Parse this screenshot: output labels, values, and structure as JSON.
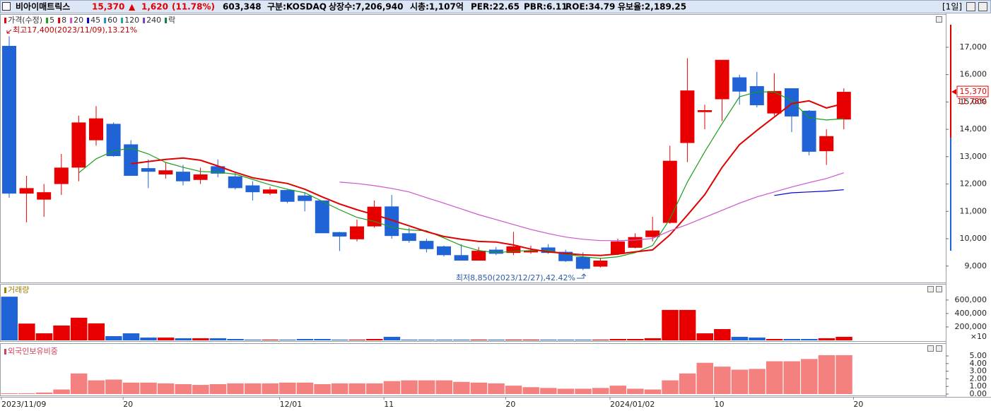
{
  "header": {
    "name": "비아이매트릭스",
    "price": "15,370",
    "arrow": "▲",
    "change": "1,620",
    "change_pct": "(11.78%)",
    "volume": "603,348",
    "market": "구분:KOSDAQ",
    "shares": "상장수:7,206,940",
    "cap": "시총:1,107억",
    "per": "PER:22.65",
    "pbr": "PBR:6.11",
    "roe": "ROE:34.79",
    "reserve": "유보율:2,189.25",
    "period": "[1일]"
  },
  "chart_data": [
    {
      "type": "candlestick",
      "price_label": "가격(수정)",
      "lock_label": "락",
      "lock_color": "#0a7e3a",
      "up_color": "#e80000",
      "down_color": "#1f63d6",
      "high_note": "최고17,400(2023/11/09),13.21%",
      "low_note": "최저8,850(2023/12/27),42.42%",
      "change_label": "11.78%",
      "ylim": [
        8400,
        18160
      ],
      "yticks": [
        {
          "value": 9000,
          "label": "9,000"
        },
        {
          "value": 10000,
          "label": "10,000"
        },
        {
          "value": 11000,
          "label": "11,000"
        },
        {
          "value": 12000,
          "label": "12,000"
        },
        {
          "value": 13000,
          "label": "13,000"
        },
        {
          "value": 14000,
          "label": "14,000"
        },
        {
          "value": 15000,
          "label": "15,000"
        },
        {
          "value": 16000,
          "label": "16,000"
        },
        {
          "value": 17000,
          "label": "17,000"
        }
      ],
      "open": [
        17050,
        11650,
        11430,
        12000,
        12600,
        13600,
        14200,
        13450,
        12580,
        12350,
        12450,
        12150,
        12650,
        12280,
        11950,
        11650,
        11780,
        11580,
        11400,
        10240,
        9980,
        10450,
        11180,
        10200,
        9920,
        9720,
        9400,
        9200,
        9600,
        9480,
        9500,
        9680,
        9520,
        9330,
        8980,
        9440,
        9670,
        10060,
        10580,
        13500,
        14630,
        15100,
        15900,
        15580,
        14580,
        15500,
        14680,
        13200,
        14360
      ],
      "high": [
        17400,
        12300,
        12000,
        13100,
        14500,
        14850,
        14250,
        13600,
        12900,
        12800,
        12700,
        12600,
        12900,
        12400,
        12100,
        11900,
        11800,
        11700,
        11400,
        10250,
        10700,
        11400,
        11600,
        10400,
        10000,
        9750,
        9800,
        9700,
        9700,
        10250,
        9750,
        9800,
        9600,
        9500,
        9300,
        10000,
        10200,
        10800,
        13400,
        16600,
        14900,
        16540,
        16000,
        16100,
        16050,
        15500,
        14700,
        14000,
        15500
      ],
      "low": [
        11500,
        10600,
        10800,
        11600,
        12100,
        13400,
        13000,
        12300,
        11850,
        12200,
        11950,
        12000,
        12250,
        11800,
        11400,
        11600,
        11300,
        11000,
        10200,
        9550,
        9900,
        10400,
        10000,
        9850,
        9500,
        9350,
        9200,
        9200,
        9400,
        9400,
        9450,
        9450,
        9150,
        8850,
        8950,
        9400,
        9650,
        9900,
        10550,
        12800,
        14000,
        14300,
        14900,
        14800,
        14500,
        13900,
        13050,
        12700,
        14000
      ],
      "close": [
        11650,
        11850,
        11700,
        12600,
        14250,
        14400,
        13020,
        12300,
        12450,
        12500,
        12100,
        12350,
        12380,
        11850,
        11700,
        11800,
        11350,
        11380,
        10200,
        10080,
        10450,
        11170,
        10100,
        9920,
        9620,
        9400,
        9200,
        9560,
        9450,
        9720,
        9560,
        9480,
        9180,
        8900,
        9200,
        9900,
        10060,
        10300,
        12850,
        15420,
        14700,
        16540,
        15380,
        14880,
        15400,
        14470,
        13180,
        13750,
        15370
      ],
      "series": [
        {
          "name": "5",
          "color": "#1a9e1a",
          "values": [
            null,
            null,
            null,
            null,
            12410,
            12920,
            13210,
            13310,
            13100,
            12790,
            12610,
            12460,
            12430,
            12360,
            12170,
            11970,
            11810,
            11680,
            11370,
            11060,
            10780,
            10630,
            10420,
            10320,
            10290,
            10030,
            9750,
            9570,
            9490,
            9540,
            9570,
            9570,
            9440,
            9340,
            9280,
            9340,
            9490,
            9750,
            10730,
            12070,
            13180,
            14210,
            15190,
            15370,
            15370,
            15040,
            14420,
            14340,
            14390
          ]
        },
        {
          "name": "8",
          "color": "#e00000",
          "values": [
            null,
            null,
            null,
            null,
            null,
            null,
            null,
            12740,
            12820,
            12900,
            12950,
            12870,
            12660,
            12430,
            12230,
            12120,
            12020,
            11810,
            11530,
            11270,
            11060,
            10880,
            10680,
            10470,
            10260,
            10080,
            9980,
            9900,
            9880,
            9770,
            9620,
            9520,
            9460,
            9410,
            9390,
            9440,
            9520,
            9590,
            10140,
            10860,
            11610,
            12610,
            13440,
            13960,
            14450,
            14940,
            15040,
            14780,
            14940
          ]
        },
        {
          "name": "20",
          "color": "#cc55cc",
          "values": [
            null,
            null,
            null,
            null,
            null,
            null,
            null,
            null,
            null,
            null,
            null,
            null,
            null,
            null,
            null,
            null,
            null,
            null,
            null,
            12070,
            12020,
            11940,
            11840,
            11710,
            11500,
            11300,
            11090,
            10880,
            10700,
            10520,
            10340,
            10190,
            10060,
            9980,
            9930,
            9930,
            9950,
            10010,
            10290,
            10520,
            10780,
            11040,
            11300,
            11530,
            11710,
            11890,
            12050,
            12200,
            12410
          ]
        },
        {
          "name": "45",
          "color": "#0000c8",
          "values": [
            null,
            null,
            null,
            null,
            null,
            null,
            null,
            null,
            null,
            null,
            null,
            null,
            null,
            null,
            null,
            null,
            null,
            null,
            null,
            null,
            null,
            null,
            null,
            null,
            null,
            null,
            null,
            null,
            null,
            null,
            null,
            null,
            null,
            null,
            null,
            null,
            null,
            null,
            null,
            null,
            null,
            null,
            null,
            null,
            11580,
            11680,
            11710,
            11740,
            11790
          ]
        },
        {
          "name": "60",
          "color": "#1a8fc4",
          "values": [
            null,
            null,
            null,
            null,
            null,
            null,
            null,
            null,
            null,
            null,
            null,
            null,
            null,
            null,
            null,
            null,
            null,
            null,
            null,
            null,
            null,
            null,
            null,
            null,
            null,
            null,
            null,
            null,
            null,
            null,
            null,
            null,
            null,
            null,
            null,
            null,
            null,
            null,
            null,
            null,
            null,
            null,
            null,
            null,
            null,
            null,
            null,
            null,
            null
          ]
        },
        {
          "name": "120",
          "color": "#2aa198",
          "values": [
            null,
            null,
            null,
            null,
            null,
            null,
            null,
            null,
            null,
            null,
            null,
            null,
            null,
            null,
            null,
            null,
            null,
            null,
            null,
            null,
            null,
            null,
            null,
            null,
            null,
            null,
            null,
            null,
            null,
            null,
            null,
            null,
            null,
            null,
            null,
            null,
            null,
            null,
            null,
            null,
            null,
            null,
            null,
            null,
            null,
            null,
            null,
            null,
            null
          ]
        },
        {
          "name": "240",
          "color": "#7a3fbf",
          "values": [
            null,
            null,
            null,
            null,
            null,
            null,
            null,
            null,
            null,
            null,
            null,
            null,
            null,
            null,
            null,
            null,
            null,
            null,
            null,
            null,
            null,
            null,
            null,
            null,
            null,
            null,
            null,
            null,
            null,
            null,
            null,
            null,
            null,
            null,
            null,
            null,
            null,
            null,
            null,
            null,
            null,
            null,
            null,
            null,
            null,
            null,
            null,
            null,
            null
          ]
        }
      ]
    },
    {
      "type": "bar",
      "title": "거래량",
      "title_color": "#a08000",
      "unit": "×10",
      "color_by": "price",
      "ylim": [
        0,
        830000
      ],
      "yticks": [
        {
          "value": 200000,
          "label": "200,000"
        },
        {
          "value": 400000,
          "label": "400,000"
        },
        {
          "value": 600000,
          "label": "600,000"
        }
      ],
      "values": [
        650000,
        250000,
        105000,
        221000,
        337000,
        253000,
        63000,
        105000,
        42000,
        42000,
        32000,
        32000,
        32000,
        21000,
        11000,
        11000,
        11000,
        21000,
        21000,
        11000,
        11000,
        21000,
        53000,
        11000,
        11000,
        11000,
        11000,
        11000,
        11000,
        11000,
        11000,
        11000,
        11000,
        11000,
        11000,
        21000,
        21000,
        32000,
        453000,
        453000,
        105000,
        168000,
        53000,
        42000,
        21000,
        21000,
        21000,
        32000,
        53000
      ]
    },
    {
      "type": "bar",
      "title": "외국인보유비중",
      "title_color": "#d04060",
      "color": "#f48080",
      "ylim": [
        0,
        6.3
      ],
      "yticks": [
        {
          "value": 0,
          "label": "0.00"
        },
        {
          "value": 1,
          "label": "1.00"
        },
        {
          "value": 2,
          "label": "2.00"
        },
        {
          "value": 3,
          "label": "3.00"
        },
        {
          "value": 4,
          "label": "4.00"
        },
        {
          "value": 5,
          "label": "5.00"
        }
      ],
      "values": [
        0.1,
        0.1,
        0.2,
        0.6,
        2.7,
        1.8,
        1.9,
        1.5,
        1.5,
        1.4,
        1.3,
        1.2,
        1.3,
        1.4,
        1.4,
        1.4,
        1.5,
        1.5,
        1.3,
        1.4,
        1.4,
        1.4,
        1.7,
        1.8,
        1.8,
        1.8,
        1.6,
        1.5,
        1.4,
        1.1,
        0.9,
        0.8,
        0.7,
        0.7,
        0.8,
        1.1,
        0.7,
        0.6,
        1.8,
        2.7,
        4.1,
        3.6,
        3.2,
        3.3,
        4.3,
        4.3,
        4.6,
        5.1,
        5.1
      ],
      "xticks": [
        {
          "value": 0,
          "label": "2023/11/09"
        },
        {
          "value": 7,
          "label": "20"
        },
        {
          "value": 16,
          "label": "12/01"
        },
        {
          "value": 22,
          "label": "11"
        },
        {
          "value": 29,
          "label": "20"
        },
        {
          "value": 35,
          "label": "2024/01/02"
        },
        {
          "value": 41,
          "label": "10"
        },
        {
          "value": 49,
          "label": "20"
        }
      ]
    }
  ]
}
